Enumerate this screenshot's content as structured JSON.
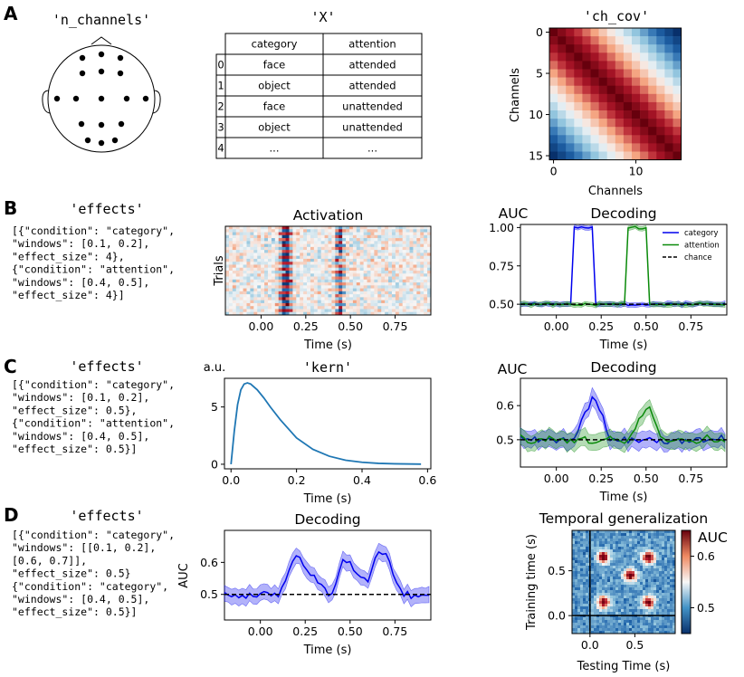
{
  "panel_labels": [
    "A",
    "B",
    "C",
    "D"
  ],
  "panelA": {
    "head_title": "'n_channels'",
    "table_title": "'X'",
    "table": {
      "columns": [
        "category",
        "attention"
      ],
      "rows": [
        [
          "0",
          "face",
          "attended"
        ],
        [
          "1",
          "object",
          "attended"
        ],
        [
          "2",
          "face",
          "unattended"
        ],
        [
          "3",
          "object",
          "unattended"
        ],
        [
          "4",
          "...",
          "..."
        ]
      ]
    },
    "cov_title": "'ch_cov'",
    "cov_xlabel": "Channels",
    "cov_ylabel": "Channels",
    "cov_xticks": [
      "0",
      "10"
    ],
    "cov_yticks": [
      "0",
      "5",
      "10",
      "15"
    ]
  },
  "panelB": {
    "code_title": "'effects'",
    "code": [
      "[{\"condition\": \"category\",",
      "  \"windows\": [0.1, 0.2],",
      "  \"effect_size\": 4},",
      " {\"condition\": \"attention\",",
      "  \"windows\": [0.4, 0.5],",
      "  \"effect_size\": 4}]"
    ]
  },
  "panelC": {
    "code_title": "'effects'",
    "code": [
      "[{\"condition\": \"category\",",
      "  \"windows\": [0.1, 0.2],",
      "  \"effect_size\": 0.5},",
      " {\"condition\": \"attention\",",
      "  \"windows\": [0.4, 0.5],",
      "  \"effect_size\": 0.5}]"
    ]
  },
  "panelD": {
    "code_title": "'effects'",
    "code": [
      "[{\"condition\": \"category\",",
      "  \"windows\": [[0.1, 0.2],",
      "          [0.6, 0.7]],",
      "  \"effect_size\": 0.5}",
      " {\"condition\": \"category\",",
      "  \"windows\": [0.4, 0.5],",
      "  \"effect_size\": 0.5}]"
    ]
  },
  "colors": {
    "category": "#0000ee",
    "attention": "#0a8a0a",
    "kernel": "#1f77b4",
    "title_purple": "#800080"
  },
  "chart_data": [
    {
      "id": "activation",
      "type": "heatmap",
      "title": "Activation",
      "xlabel": "Time (s)",
      "ylabel": "Trials",
      "xlim": [
        -0.2,
        0.95
      ],
      "xticks": [
        "0.00",
        "0.25",
        "0.50",
        "0.75"
      ]
    },
    {
      "id": "decodingB",
      "type": "line",
      "title": "Decoding",
      "ylabel": "AUC",
      "xlabel": "Time (s)",
      "xlim": [
        -0.2,
        0.95
      ],
      "ylim": [
        0.43,
        1.02
      ],
      "xticks": [
        "0.00",
        "0.25",
        "0.50",
        "0.75"
      ],
      "yticks": [
        "0.50",
        "0.75",
        "1.00"
      ],
      "legend_position": "top-right",
      "series": [
        {
          "name": "category",
          "x": [
            -0.2,
            0.08,
            0.1,
            0.2,
            0.22,
            0.95
          ],
          "values": [
            0.5,
            0.5,
            1.0,
            1.0,
            0.5,
            0.5
          ]
        },
        {
          "name": "attention",
          "x": [
            -0.2,
            0.38,
            0.4,
            0.5,
            0.52,
            0.95
          ],
          "values": [
            0.5,
            0.5,
            1.0,
            1.0,
            0.5,
            0.5
          ]
        },
        {
          "name": "chance",
          "x": [
            -0.2,
            0.95
          ],
          "values": [
            0.5,
            0.5
          ]
        }
      ]
    },
    {
      "id": "kern",
      "type": "line",
      "title": "'kern'",
      "ylabel": "a.u.",
      "xlabel": "Time (s)",
      "xlim": [
        -0.02,
        0.61
      ],
      "ylim": [
        -0.4,
        7.5
      ],
      "xticks": [
        "0.0",
        "0.2",
        "0.4",
        "0.6"
      ],
      "yticks": [
        "0",
        "5"
      ],
      "series": [
        {
          "x": [
            0,
            0.01,
            0.02,
            0.03,
            0.04,
            0.05,
            0.06,
            0.08,
            0.1,
            0.12,
            0.15,
            0.2,
            0.25,
            0.3,
            0.35,
            0.4,
            0.45,
            0.5,
            0.58
          ],
          "values": [
            0,
            2.9,
            5.2,
            6.5,
            7.0,
            7.1,
            7.0,
            6.5,
            5.8,
            5.0,
            3.9,
            2.3,
            1.3,
            0.7,
            0.35,
            0.17,
            0.08,
            0.04,
            0.01
          ]
        }
      ]
    },
    {
      "id": "decodingC",
      "type": "line",
      "title": "Decoding",
      "ylabel": "AUC",
      "xlabel": "Time (s)",
      "xlim": [
        -0.2,
        0.95
      ],
      "ylim": [
        0.42,
        0.68
      ],
      "xticks": [
        "0.00",
        "0.25",
        "0.50",
        "0.75"
      ],
      "yticks": [
        "0.5",
        "0.6"
      ],
      "series": [
        {
          "name": "category",
          "x": [
            -0.2,
            0.1,
            0.15,
            0.2,
            0.22,
            0.25,
            0.3,
            0.95
          ],
          "values": [
            0.5,
            0.5,
            0.56,
            0.62,
            0.62,
            0.58,
            0.5,
            0.5
          ]
        },
        {
          "name": "attention",
          "x": [
            -0.2,
            0.4,
            0.45,
            0.5,
            0.52,
            0.55,
            0.6,
            0.95
          ],
          "values": [
            0.5,
            0.5,
            0.55,
            0.6,
            0.6,
            0.56,
            0.5,
            0.5
          ]
        },
        {
          "name": "chance",
          "x": [
            -0.2,
            0.95
          ],
          "values": [
            0.5,
            0.5
          ]
        }
      ]
    },
    {
      "id": "decodingD",
      "type": "line",
      "title": "Decoding",
      "ylabel": "AUC",
      "xlabel": "Time (s)",
      "xlim": [
        -0.2,
        0.95
      ],
      "ylim": [
        0.42,
        0.7
      ],
      "xticks": [
        "0.00",
        "0.25",
        "0.50",
        "0.75"
      ],
      "yticks": [
        "0.5",
        "0.6"
      ],
      "series": [
        {
          "name": "category",
          "x": [
            -0.2,
            0.1,
            0.2,
            0.3,
            0.4,
            0.45,
            0.5,
            0.55,
            0.6,
            0.65,
            0.7,
            0.75,
            0.8,
            0.95
          ],
          "values": [
            0.5,
            0.5,
            0.63,
            0.55,
            0.5,
            0.6,
            0.6,
            0.55,
            0.55,
            0.63,
            0.63,
            0.55,
            0.5,
            0.5
          ]
        },
        {
          "name": "chance",
          "x": [
            -0.2,
            0.95
          ],
          "values": [
            0.5,
            0.5
          ]
        }
      ]
    },
    {
      "id": "tempgen",
      "type": "heatmap",
      "title": "Temporal generalization",
      "xlabel": "Testing Time (s)",
      "ylabel": "Training time (s)",
      "xlim": [
        -0.2,
        0.95
      ],
      "ylim": [
        -0.2,
        0.95
      ],
      "xticks": [
        "0.0",
        "0.5"
      ],
      "yticks": [
        "0.0",
        "0.5"
      ],
      "colorbar_label": "AUC",
      "colorbar_ticks": [
        "0.5",
        "0.6"
      ],
      "colorbar_range": [
        0.45,
        0.65
      ],
      "peaks_x": [
        0.15,
        0.45,
        0.65
      ],
      "peaks_y": [
        0.15,
        0.45,
        0.65
      ]
    }
  ]
}
